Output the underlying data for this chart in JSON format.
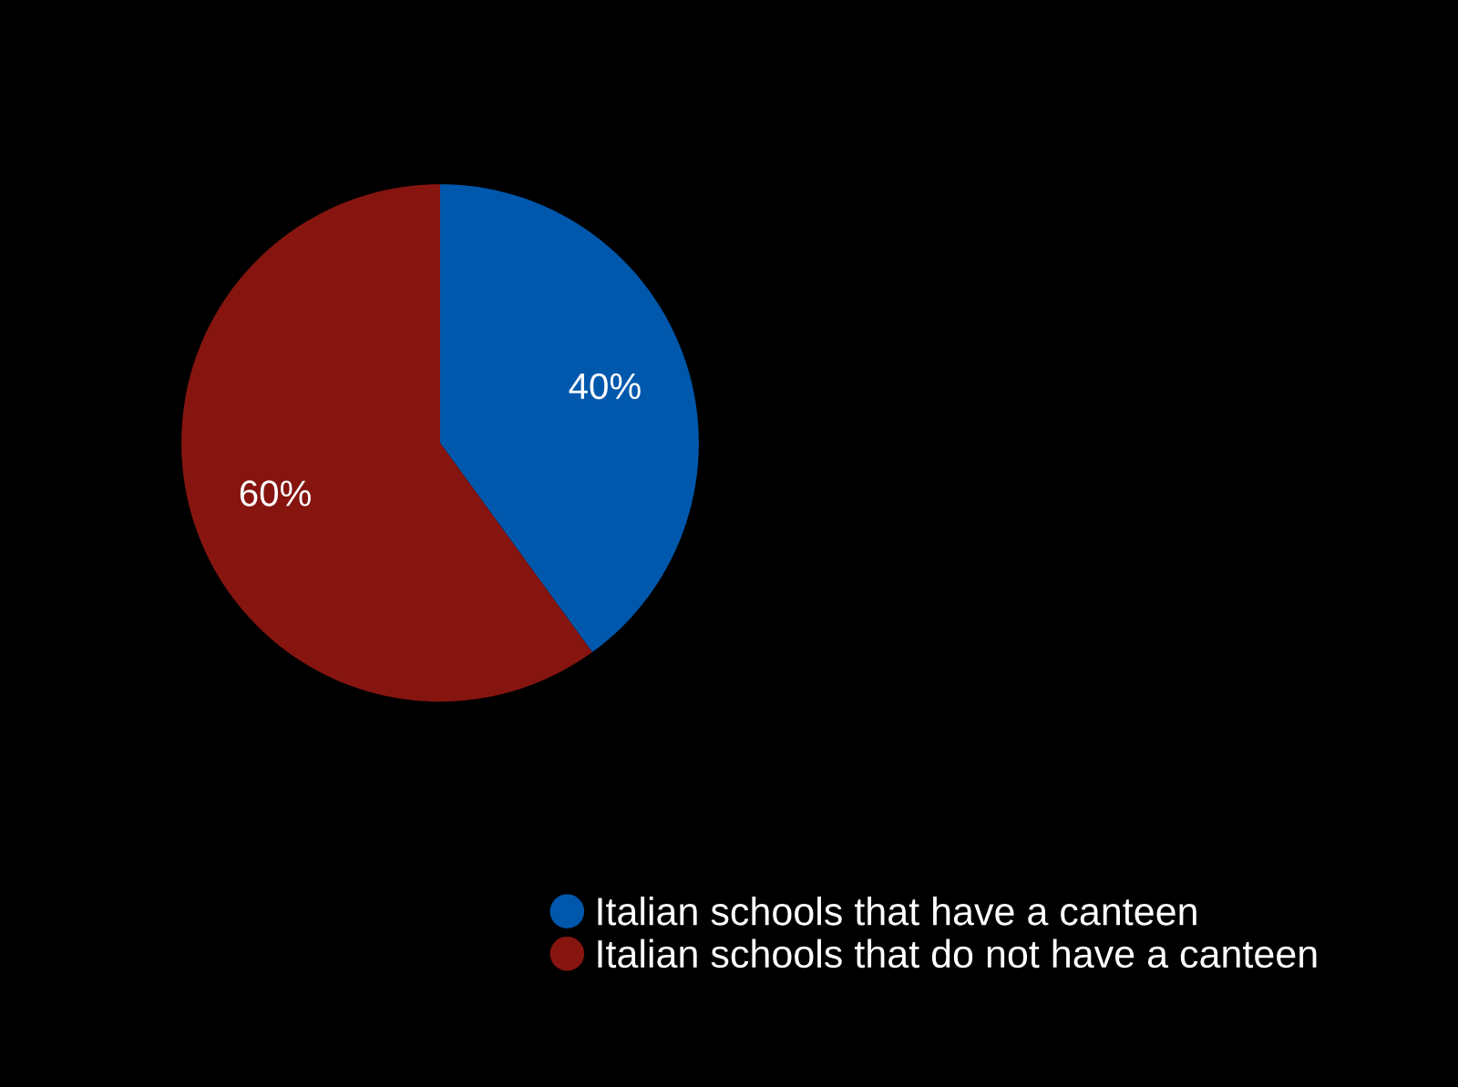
{
  "chart_data": {
    "type": "pie",
    "categories": [
      "Italian schools that have a canteen",
      "Italian schools that do not have a canteen"
    ],
    "values": [
      40,
      60
    ],
    "colors": [
      "#0058ad",
      "#861510"
    ],
    "value_labels": [
      "40%",
      "60%"
    ],
    "legend": "bottom"
  }
}
